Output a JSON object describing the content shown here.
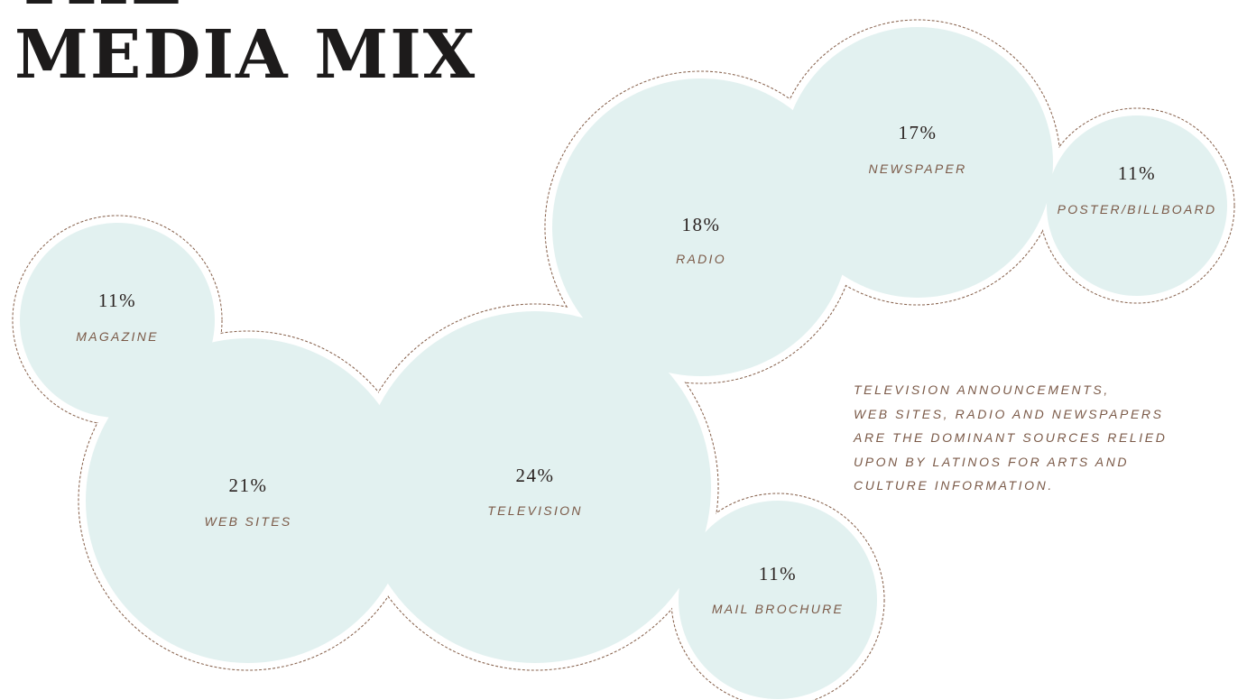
{
  "title": "THE\nMEDIA MIX",
  "note": "TELEVISION ANNOUNCEMENTS,\nWEB SITES, RADIO AND NEWSPAPERS\nARE THE DOMINANT SOURCES RELIED\nUPON BY LATINOS FOR ARTS AND\nCULTURE INFORMATION.",
  "colors": {
    "bubble_fill": "#e2f1f0",
    "outline": "#8a6550",
    "label": "#7b5a48",
    "value": "#2a2220"
  },
  "chart_data": {
    "type": "bubble",
    "unit": "%",
    "items": [
      {
        "label": "MAGAZINE",
        "value": 11,
        "display": "11%"
      },
      {
        "label": "WEB SITES",
        "value": 21,
        "display": "21%"
      },
      {
        "label": "TELEVISION",
        "value": 24,
        "display": "24%"
      },
      {
        "label": "RADIO",
        "value": 18,
        "display": "18%"
      },
      {
        "label": "NEWSPAPER",
        "value": 17,
        "display": "17%"
      },
      {
        "label": "POSTER/BILLBOARD",
        "value": 11,
        "display": "11%"
      },
      {
        "label": "MAIL BROCHURE",
        "value": 11,
        "display": "11%"
      }
    ]
  }
}
